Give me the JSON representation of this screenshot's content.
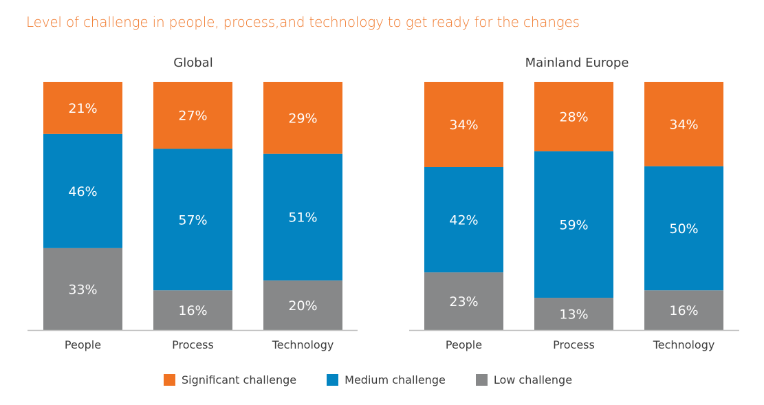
{
  "title": "Level of challenge in people, process,and technology to get ready for the changes",
  "colors": {
    "significant": "#f07323",
    "medium": "#0384c1",
    "low": "#878889",
    "axis": "#bdbdbd",
    "title": "#f07a2e",
    "label_text": "#3c3c3c",
    "value_text": "#ffffff"
  },
  "legend": [
    {
      "label": "Significant challenge",
      "color": "#f07323"
    },
    {
      "label": "Medium challenge",
      "color": "#0384c1"
    },
    {
      "label": "Low challenge",
      "color": "#878889"
    }
  ],
  "chart_data": [
    {
      "type": "bar",
      "stacked": true,
      "title": "Global",
      "categories": [
        "People",
        "Process",
        "Technology"
      ],
      "series": [
        {
          "name": "Low challenge",
          "values": [
            33,
            16,
            20
          ]
        },
        {
          "name": "Medium challenge",
          "values": [
            46,
            57,
            51
          ]
        },
        {
          "name": "Significant challenge",
          "values": [
            21,
            27,
            29
          ]
        }
      ],
      "ylim": [
        0,
        100
      ],
      "xlabel": "",
      "ylabel": "",
      "grid": false,
      "legend_position": "bottom"
    },
    {
      "type": "bar",
      "stacked": true,
      "title": "Mainland Europe",
      "categories": [
        "People",
        "Process",
        "Technology"
      ],
      "series": [
        {
          "name": "Low challenge",
          "values": [
            23,
            13,
            16
          ]
        },
        {
          "name": "Medium challenge",
          "values": [
            42,
            59,
            50
          ]
        },
        {
          "name": "Significant challenge",
          "values": [
            34,
            28,
            34
          ]
        }
      ],
      "ylim": [
        0,
        100
      ],
      "xlabel": "",
      "ylabel": "",
      "grid": false,
      "legend_position": "bottom"
    }
  ]
}
